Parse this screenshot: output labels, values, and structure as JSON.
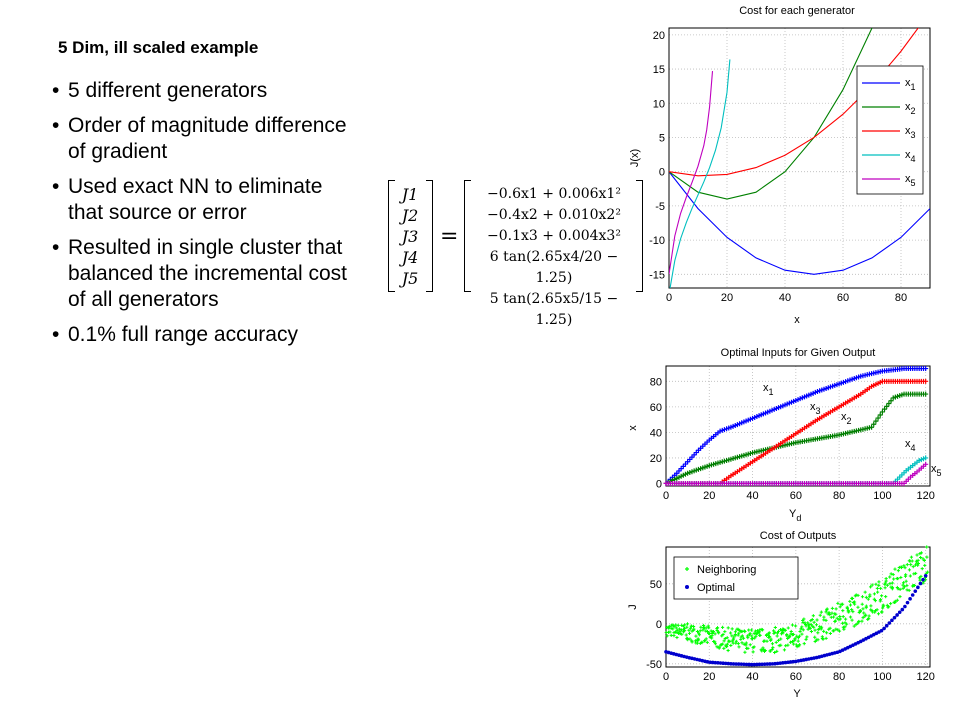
{
  "slide": {
    "title": "5 Dim, ill scaled example",
    "bullets": [
      "5 different generators",
      "Order of magnitude difference of gradient",
      "Used exact NN to eliminate that source or error",
      "Resulted in single cluster that balanced the incremental cost of all generators",
      "0.1% full range accuracy"
    ]
  },
  "equation": {
    "lhs": [
      "J1",
      "J2",
      "J3",
      "J4",
      "J5"
    ],
    "rhs": [
      "−0.6x1 + 0.006x1²",
      "−0.4x2 + 0.010x2²",
      "−0.1x3 + 0.004x3²",
      "6 tan(2.65x4/20 − 1.25)",
      "5 tan(2.65x5/15 − 1.25)"
    ]
  },
  "chart_data": [
    {
      "type": "line",
      "title": "Cost for each generator",
      "xlabel": "x",
      "ylabel": "J(x)",
      "xlim": [
        0,
        90
      ],
      "ylim": [
        -17,
        21
      ],
      "xticks": [
        0,
        20,
        40,
        60,
        80
      ],
      "yticks": [
        -15,
        -10,
        -5,
        0,
        5,
        10,
        15,
        20
      ],
      "grid": true,
      "legend": "top-right",
      "series": [
        {
          "name": "x1",
          "color": "#0000ff",
          "x": [
            0,
            10,
            20,
            30,
            40,
            50,
            60,
            70,
            80,
            90
          ],
          "values": [
            0,
            -5.4,
            -9.6,
            -12.6,
            -14.4,
            -15,
            -14.4,
            -12.6,
            -9.6,
            -5.4
          ]
        },
        {
          "name": "x2",
          "color": "#008000",
          "x": [
            0,
            10,
            20,
            30,
            40,
            50,
            60,
            70
          ],
          "values": [
            0,
            -3,
            -4,
            -3,
            0,
            5,
            12,
            21
          ]
        },
        {
          "name": "x3",
          "color": "#ff0000",
          "x": [
            0,
            10,
            20,
            30,
            40,
            50,
            60,
            70,
            80,
            88
          ],
          "values": [
            0,
            -0.6,
            -0.4,
            0.6,
            2.4,
            5,
            8.4,
            12.6,
            17.6,
            22.2
          ]
        },
        {
          "name": "x4",
          "color": "#00bfbf",
          "x": [
            0,
            2,
            4,
            6,
            8,
            10,
            12,
            14,
            16,
            18,
            20,
            21
          ],
          "values": [
            -17.9,
            -13,
            -9.8,
            -7.4,
            -5.3,
            -3.4,
            -1.5,
            0.6,
            3.1,
            6.4,
            11.6,
            16.4
          ]
        },
        {
          "name": "x5",
          "color": "#bf00bf",
          "x": [
            0,
            2,
            4,
            6,
            8,
            10,
            12,
            13,
            14,
            15
          ],
          "values": [
            -15,
            -9.4,
            -6.1,
            -3.7,
            -1.5,
            0.8,
            3.8,
            6.1,
            9.5,
            14.7
          ]
        }
      ]
    },
    {
      "type": "scatter",
      "title": "Optimal Inputs for Given Output",
      "xlabel": "Yd",
      "ylabel": "x",
      "xlim": [
        0,
        122
      ],
      "ylim": [
        -2,
        92
      ],
      "xticks": [
        0,
        20,
        40,
        60,
        80,
        100,
        120
      ],
      "yticks": [
        0,
        20,
        40,
        60,
        80
      ],
      "grid": true,
      "series": [
        {
          "name": "x1",
          "color": "#0000ff",
          "x": [
            0,
            5,
            10,
            15,
            20,
            25,
            30,
            40,
            50,
            60,
            70,
            80,
            90,
            100,
            110,
            120
          ],
          "values": [
            0,
            8,
            17,
            26,
            34,
            41,
            44,
            51,
            58,
            65,
            72,
            78,
            84,
            88,
            90,
            90
          ]
        },
        {
          "name": "x2",
          "color": "#007f00",
          "x": [
            0,
            5,
            10,
            15,
            20,
            30,
            40,
            50,
            60,
            70,
            80,
            90,
            95,
            100,
            105,
            110,
            120
          ],
          "values": [
            0,
            4,
            8,
            11,
            14,
            19,
            24,
            28,
            32,
            35,
            38,
            42,
            44,
            56,
            67,
            70,
            70
          ]
        },
        {
          "name": "x3",
          "color": "#ff0000",
          "x": [
            0,
            25,
            30,
            40,
            50,
            60,
            70,
            80,
            90,
            95,
            100,
            110,
            120
          ],
          "values": [
            0,
            0,
            6,
            17,
            28,
            39,
            50,
            60,
            70,
            76,
            80,
            80,
            80
          ]
        },
        {
          "name": "x4",
          "color": "#00bfbf",
          "x": [
            0,
            105,
            108,
            111,
            114,
            117,
            120
          ],
          "values": [
            0,
            0,
            5,
            10,
            14,
            18,
            20
          ]
        },
        {
          "name": "x5",
          "color": "#bf00bf",
          "x": [
            0,
            110,
            113,
            116,
            118,
            120
          ],
          "values": [
            0,
            0,
            5,
            9,
            12,
            15
          ]
        }
      ],
      "annotations": [
        "x1",
        "x3",
        "x2",
        "x4",
        "x5"
      ]
    },
    {
      "type": "scatter",
      "title": "Cost of Outputs",
      "xlabel": "Y",
      "ylabel": "J",
      "xlim": [
        0,
        122
      ],
      "ylim": [
        -54,
        96
      ],
      "xticks": [
        0,
        20,
        40,
        60,
        80,
        100,
        120
      ],
      "yticks": [
        -50,
        0,
        50
      ],
      "grid": true,
      "legend": "top-left",
      "series": [
        {
          "name": "Neighboring",
          "color": "#00ff00",
          "x": [
            0,
            10,
            20,
            30,
            40,
            50,
            60,
            70,
            80,
            90,
            100,
            110,
            120
          ],
          "values": [
            -10,
            -14,
            -20,
            -24,
            -26,
            -25,
            -20,
            -10,
            2,
            15,
            30,
            50,
            70
          ],
          "spread": [
            12,
            18,
            22,
            24,
            25,
            26,
            28,
            30,
            32,
            34,
            35,
            36,
            38
          ]
        },
        {
          "name": "Optimal",
          "color": "#0000cd",
          "x": [
            0,
            10,
            20,
            30,
            40,
            50,
            60,
            70,
            80,
            90,
            100,
            110,
            120
          ],
          "values": [
            -35,
            -42,
            -48,
            -50,
            -51,
            -50,
            -47,
            -42,
            -35,
            -22,
            -8,
            20,
            60
          ]
        }
      ]
    }
  ]
}
